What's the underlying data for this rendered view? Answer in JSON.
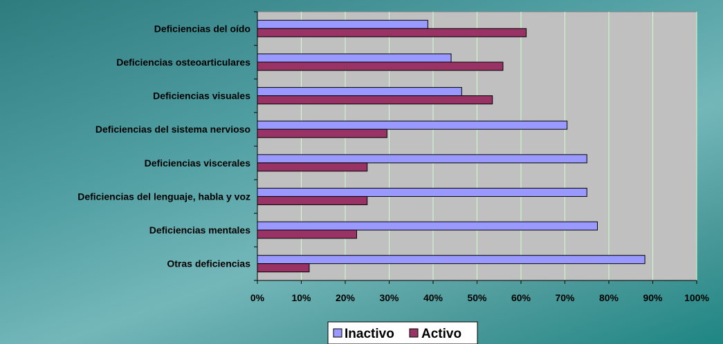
{
  "chart_data": {
    "type": "bar",
    "orientation": "horizontal",
    "title": "",
    "categories": [
      "Deficiencias del oído",
      "Deficiencias osteoarticulares",
      "Deficiencias visuales",
      "Deficiencias del sistema nervioso",
      "Deficiencias viscerales",
      "Deficiencias del lenguaje, habla y voz",
      "Deficiencias mentales",
      "Otras deficiencias"
    ],
    "series": [
      {
        "name": "Inactivo",
        "color": "#9999ff",
        "values": [
          38.8,
          44.1,
          46.5,
          70.5,
          75.0,
          75.0,
          77.4,
          88.2
        ]
      },
      {
        "name": "Activo",
        "color": "#993366",
        "values": [
          61.2,
          55.9,
          53.5,
          29.5,
          25.0,
          25.0,
          22.6,
          11.8
        ]
      }
    ],
    "xlim": [
      0,
      100
    ],
    "xticks": [
      "0%",
      "10%",
      "20%",
      "30%",
      "40%",
      "50%",
      "60%",
      "70%",
      "80%",
      "90%",
      "100%"
    ],
    "grid": "vertical",
    "legend_position": "bottom-center",
    "plot_background": "#c0c0c0",
    "gridline_color": "#ccffcc"
  }
}
